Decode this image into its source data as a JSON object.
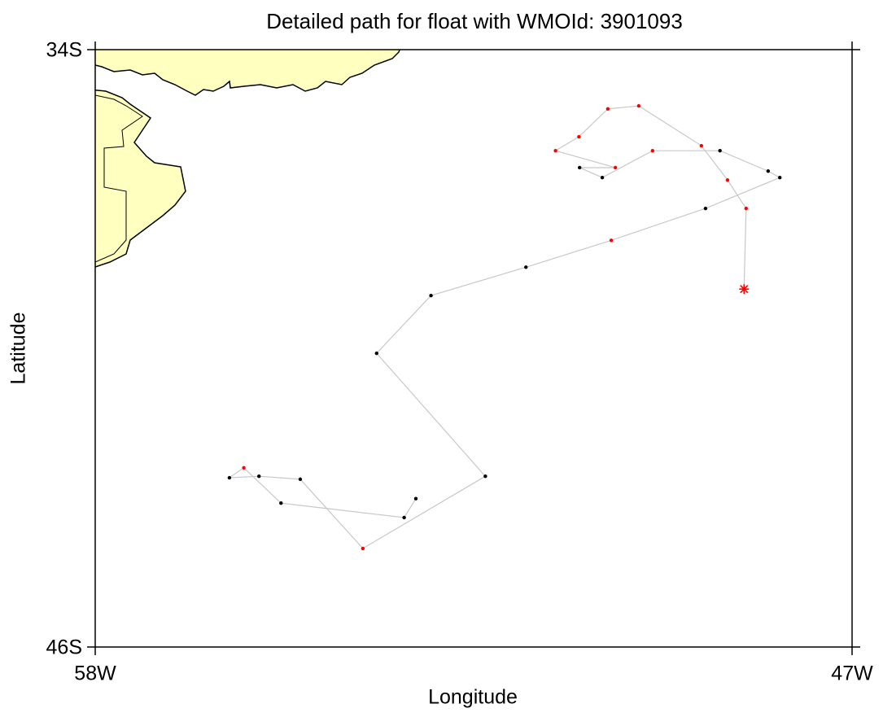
{
  "chart_data": {
    "type": "line",
    "title": "Detailed path for float with WMOId: 3901093",
    "x_label": "Longitude",
    "y_label": "Latitude",
    "x": [
      -48.57,
      -48.54,
      -48.81,
      -49.19,
      -50.1,
      -50.55,
      -50.97,
      -51.31,
      -50.44,
      -50.96,
      -50.63,
      -49.9,
      -48.92,
      -48.22,
      -48.05,
      -49.13,
      -50.5,
      -51.74,
      -53.12,
      -53.91,
      -52.33,
      -54.11,
      -55.02,
      -55.62,
      -56.05,
      -55.84,
      -55.3,
      -53.51,
      -53.34
    ],
    "values": [
      -38.81,
      -37.19,
      -36.62,
      -35.93,
      -35.13,
      -35.19,
      -35.75,
      -36.03,
      -36.37,
      -36.37,
      -36.57,
      -36.03,
      -36.03,
      -36.44,
      -36.57,
      -37.19,
      -37.83,
      -38.37,
      -38.94,
      -40.1,
      -42.57,
      -44.02,
      -42.63,
      -42.57,
      -42.6,
      -42.4,
      -43.11,
      -43.4,
      -43.02
    ],
    "point_colors": [
      "#ff0000",
      "#ff0000",
      "#ff0000",
      "#ff0000",
      "#ff0000",
      "#ff0000",
      "#ff0000",
      "#ff0000",
      "#ff0000",
      "#000000",
      "#000000",
      "#ff0000",
      "#000000",
      "#000000",
      "#000000",
      "#000000",
      "#ff0000",
      "#000000",
      "#000000",
      "#000000",
      "#000000",
      "#ff0000",
      "#000000",
      "#000000",
      "#000000",
      "#ff0000",
      "#000000",
      "#000000",
      "#000000"
    ],
    "line_color": "#c8c8c8",
    "xlim": [
      -58,
      -47
    ],
    "ylim": [
      -46,
      -34
    ],
    "xticks": [
      {
        "value": -58,
        "label": "58W"
      },
      {
        "value": -47,
        "label": "47W"
      }
    ],
    "yticks": [
      {
        "value": -46,
        "label": "46S"
      },
      {
        "value": -34,
        "label": "34S"
      }
    ]
  }
}
